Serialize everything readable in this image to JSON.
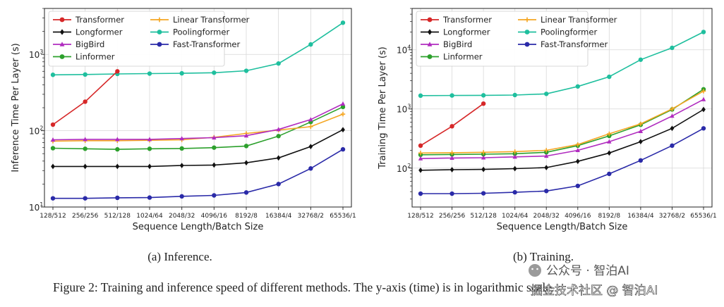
{
  "chart_data": [
    {
      "type": "line",
      "yscale": "log",
      "xlabel": "Sequence Length/Batch Size",
      "ylabel": "Inference Time Per Layer (s)",
      "ylim": [
        10,
        4000
      ],
      "yticks": [
        {
          "value": 10,
          "label": "10",
          "exp": "1"
        },
        {
          "value": 100,
          "label": "10",
          "exp": "2"
        },
        {
          "value": 1000,
          "label": "10",
          "exp": "3"
        }
      ],
      "categories": [
        "128/512",
        "256/256",
        "512/128",
        "1024/64",
        "2048/32",
        "4096/16",
        "8192/8",
        "16384/4",
        "32768/2",
        "65536/1"
      ],
      "grid": true,
      "subtitle": "(a) Inference.",
      "series": [
        {
          "name": "Transformer",
          "color": "#d62728",
          "marker": "circle",
          "values": [
            120,
            240,
            600,
            null,
            null,
            null,
            null,
            null,
            null,
            null
          ]
        },
        {
          "name": "Longformer",
          "color": "#111111",
          "marker": "diamond",
          "values": [
            34,
            34,
            34,
            34,
            35,
            35.5,
            38,
            44,
            62,
            103
          ]
        },
        {
          "name": "BigBird",
          "color": "#b02bbf",
          "marker": "triangle",
          "values": [
            76,
            77,
            77,
            77,
            79,
            81,
            86,
            104,
            140,
            225
          ]
        },
        {
          "name": "Linformer",
          "color": "#2ca02c",
          "marker": "circle",
          "values": [
            59,
            58,
            57,
            58,
            58.5,
            60,
            63,
            85,
            130,
            205
          ]
        },
        {
          "name": "Linear Transformer",
          "color": "#f5a623",
          "marker": "plus",
          "values": [
            73,
            74,
            74,
            75,
            76,
            82,
            92,
            102,
            113,
            165
          ]
        },
        {
          "name": "Poolingformer",
          "color": "#1fbf9e",
          "marker": "circle",
          "values": [
            540,
            545,
            555,
            560,
            565,
            575,
            610,
            760,
            1350,
            2600
          ]
        },
        {
          "name": "Fast-Transformer",
          "color": "#2a2aa8",
          "marker": "circle",
          "values": [
            13,
            13,
            13.2,
            13.3,
            13.8,
            14.2,
            15.5,
            20,
            32,
            57
          ]
        }
      ]
    },
    {
      "type": "line",
      "yscale": "log",
      "xlabel": "Sequence Length/Batch Size",
      "ylabel": "Training Time Per Layer (s)",
      "ylim": [
        22,
        50000
      ],
      "yticks": [
        {
          "value": 100,
          "label": "10",
          "exp": "2"
        },
        {
          "value": 1000,
          "label": "10",
          "exp": "3"
        },
        {
          "value": 10000,
          "label": "10",
          "exp": "4"
        }
      ],
      "categories": [
        "128/512",
        "256/256",
        "512/128",
        "1024/64",
        "2048/32",
        "4096/16",
        "8192/8",
        "16384/4",
        "32768/2",
        "65536/1"
      ],
      "grid": true,
      "subtitle": "(b) Training.",
      "series": [
        {
          "name": "Transformer",
          "color": "#d62728",
          "marker": "circle",
          "values": [
            240,
            510,
            1230,
            null,
            null,
            null,
            null,
            null,
            null,
            null
          ]
        },
        {
          "name": "Longformer",
          "color": "#111111",
          "marker": "diamond",
          "values": [
            92,
            94,
            95,
            98,
            102,
            130,
            180,
            280,
            470,
            980
          ]
        },
        {
          "name": "BigBird",
          "color": "#b02bbf",
          "marker": "triangle",
          "values": [
            145,
            148,
            150,
            155,
            160,
            200,
            280,
            420,
            760,
            1450
          ]
        },
        {
          "name": "Linformer",
          "color": "#2ca02c",
          "marker": "circle",
          "values": [
            168,
            170,
            172,
            175,
            185,
            240,
            350,
            540,
            980,
            2150
          ]
        },
        {
          "name": "Linear Transformer",
          "color": "#f5a623",
          "marker": "plus",
          "values": [
            180,
            182,
            185,
            190,
            200,
            250,
            380,
            560,
            1000,
            2000
          ]
        },
        {
          "name": "Poolingformer",
          "color": "#1fbf9e",
          "marker": "circle",
          "values": [
            1680,
            1690,
            1700,
            1720,
            1800,
            2400,
            3500,
            6800,
            10800,
            20000
          ]
        },
        {
          "name": "Fast-Transformer",
          "color": "#2a2aa8",
          "marker": "circle",
          "values": [
            37,
            37,
            37.5,
            39,
            41,
            50,
            80,
            135,
            240,
            470
          ]
        }
      ]
    }
  ],
  "caption": "Figure 2: Training and inference speed of different methods. The y-axis (time) is in logarithmic scale.",
  "watermark": {
    "line1": "公众号 · 智泊AI",
    "line2": "掘金技术社区 @ 智泊AI"
  }
}
